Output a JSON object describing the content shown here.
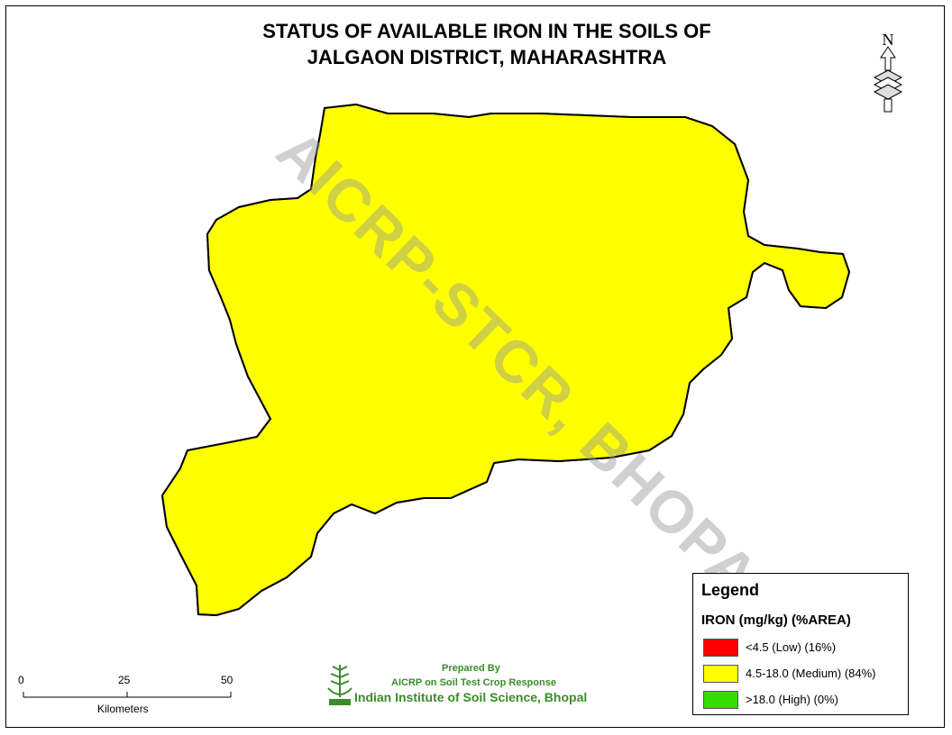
{
  "map": {
    "title_line1": "STATUS OF AVAILABLE IRON IN THE SOILS OF",
    "title_line2": "JALGAON DISTRICT, MAHARASHTRA",
    "watermark": "AICRP-STCR, BHOPAL",
    "north_label": "N",
    "fill_colors": {
      "medium": "#ffff00",
      "low": "#ff0000",
      "high": "#33dd00",
      "sample_point": "#2f6fa8",
      "boundary": "#000000"
    }
  },
  "legend": {
    "title": "Legend",
    "subtitle": "IRON (mg/kg) (%AREA)",
    "classes": [
      {
        "label": "<4.5 (Low) (16%)",
        "color": "#ff0000",
        "area_pct": 16
      },
      {
        "label": "4.5-18.0 (Medium) (84%)",
        "color": "#ffff00",
        "area_pct": 84
      },
      {
        "label": ">18.0 (High) (0%)",
        "color": "#33dd00",
        "area_pct": 0
      }
    ]
  },
  "scale": {
    "ticks": [
      "0",
      "25",
      "50"
    ],
    "unit": "Kilometers"
  },
  "credit": {
    "prepared_by": "Prepared By",
    "project": "AICRP on Soil Test Crop Response",
    "institute": "Indian Institute of Soil Science, Bhopal"
  }
}
